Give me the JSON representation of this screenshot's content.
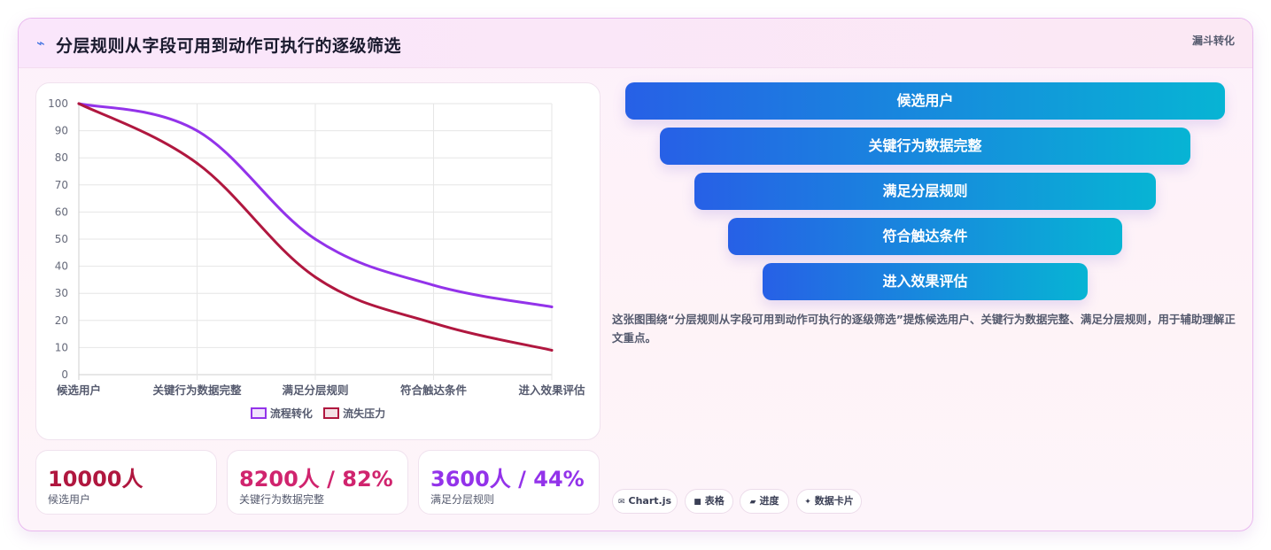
{
  "header": {
    "icon": "lightning-icon",
    "title": "分层规则从字段可用到动作可执行的逐级筛选",
    "tag": "漏斗转化"
  },
  "chart_data": {
    "type": "line",
    "categories": [
      "候选用户",
      "关键行为数据完整",
      "满足分层规则",
      "符合触达条件",
      "进入效果评估"
    ],
    "series": [
      {
        "name": "流程转化",
        "values": [
          100,
          90,
          50,
          33,
          25
        ],
        "color": "#9333ea"
      },
      {
        "name": "流失压力",
        "values": [
          100,
          78,
          36,
          19,
          9
        ],
        "color": "#b0173f"
      }
    ],
    "ylim": [
      0,
      100
    ],
    "yticks": [
      0,
      10,
      20,
      30,
      40,
      50,
      60,
      70,
      80,
      90,
      100
    ],
    "grid": true,
    "legend_position": "bottom"
  },
  "stats": [
    {
      "value": "10000人",
      "label": "候选用户",
      "color": "#b0173f"
    },
    {
      "value": "8200人 / 82%",
      "label": "关键行为数据完整",
      "color": "#d0246e"
    },
    {
      "value": "3600人 / 44%",
      "label": "满足分层规则",
      "color": "#9333ea"
    }
  ],
  "funnel": [
    "候选用户",
    "关键行为数据完整",
    "满足分层规则",
    "符合触达条件",
    "进入效果评估"
  ],
  "description": "这张图围绕“分层规则从字段可用到动作可执行的逐级筛选”提炼候选用户、关键行为数据完整、满足分层规则，用于辅助理解正文重点。",
  "chips": [
    {
      "icon": "envelope-icon",
      "glyph": "✉",
      "label": "Chart.js"
    },
    {
      "icon": "table-icon",
      "glyph": "■",
      "label": "表格"
    },
    {
      "icon": "progress-icon",
      "glyph": "▰",
      "label": "进度"
    },
    {
      "icon": "sparkle-icon",
      "glyph": "✦",
      "label": "数据卡片"
    }
  ]
}
